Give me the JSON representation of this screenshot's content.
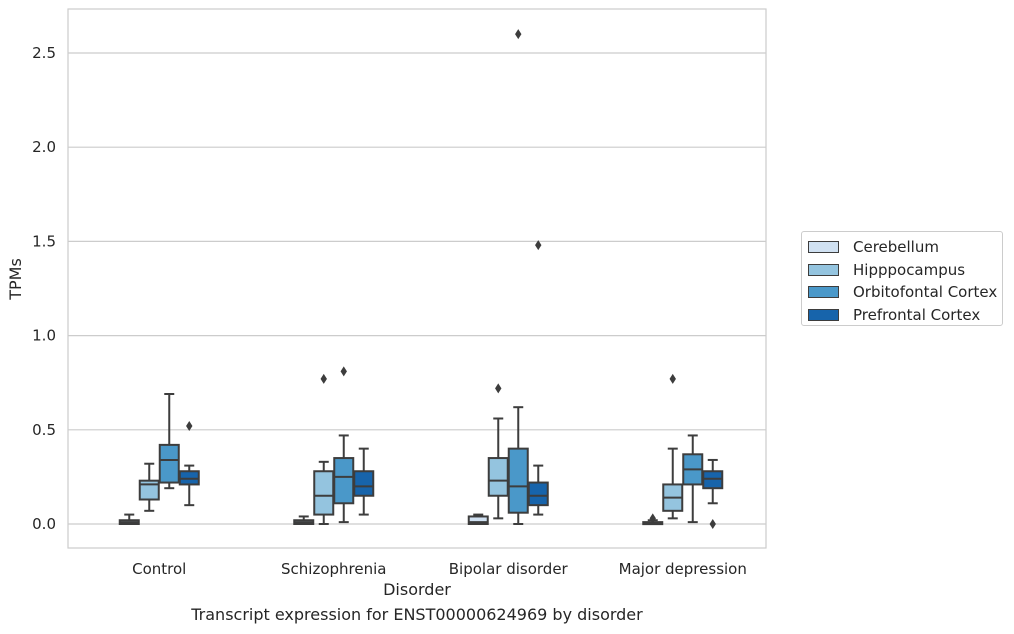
{
  "chart_data": {
    "type": "box",
    "title": "",
    "caption": "Transcript expression for ENST00000624969 by disorder",
    "xlabel": "Disorder",
    "ylabel": "TPMs",
    "ylim": [
      -0.12,
      2.75
    ],
    "yticks": [
      "0.0",
      "0.5",
      "1.0",
      "1.5",
      "2.0",
      "2.5"
    ],
    "ytick_values": [
      0.0,
      0.5,
      1.0,
      1.5,
      2.0,
      2.5
    ],
    "grid": "horizontal",
    "legend_position": "right",
    "categories": [
      "Control",
      "Schizophrenia",
      "Bipolar disorder",
      "Major depression"
    ],
    "series": [
      {
        "name": "Cerebellum",
        "color": "#d0e1f2",
        "boxes": [
          {
            "whisker_low": 0.0,
            "q1": 0.0,
            "median": 0.01,
            "q3": 0.02,
            "whisker_high": 0.05,
            "outliers": []
          },
          {
            "whisker_low": 0.0,
            "q1": 0.0,
            "median": 0.01,
            "q3": 0.02,
            "whisker_high": 0.04,
            "outliers": []
          },
          {
            "whisker_low": 0.0,
            "q1": 0.0,
            "median": 0.01,
            "q3": 0.04,
            "whisker_high": 0.05,
            "outliers": []
          },
          {
            "whisker_low": 0.0,
            "q1": 0.0,
            "median": 0.005,
            "q3": 0.01,
            "whisker_high": 0.02,
            "outliers": [
              0.03
            ]
          }
        ]
      },
      {
        "name": "Hipppocampus",
        "color": "#94c4df",
        "boxes": [
          {
            "whisker_low": 0.07,
            "q1": 0.13,
            "median": 0.21,
            "q3": 0.23,
            "whisker_high": 0.32,
            "outliers": []
          },
          {
            "whisker_low": 0.0,
            "q1": 0.05,
            "median": 0.15,
            "q3": 0.28,
            "whisker_high": 0.33,
            "outliers": [
              0.77
            ]
          },
          {
            "whisker_low": 0.03,
            "q1": 0.15,
            "median": 0.23,
            "q3": 0.35,
            "whisker_high": 0.56,
            "outliers": [
              0.72
            ]
          },
          {
            "whisker_low": 0.03,
            "q1": 0.07,
            "median": 0.14,
            "q3": 0.21,
            "whisker_high": 0.4,
            "outliers": [
              0.77
            ]
          }
        ]
      },
      {
        "name": "Orbitofontal Cortex",
        "color": "#4a98c9",
        "boxes": [
          {
            "whisker_low": 0.19,
            "q1": 0.22,
            "median": 0.34,
            "q3": 0.42,
            "whisker_high": 0.69,
            "outliers": []
          },
          {
            "whisker_low": 0.01,
            "q1": 0.11,
            "median": 0.25,
            "q3": 0.35,
            "whisker_high": 0.47,
            "outliers": [
              0.81
            ]
          },
          {
            "whisker_low": 0.0,
            "q1": 0.06,
            "median": 0.2,
            "q3": 0.4,
            "whisker_high": 0.62,
            "outliers": [
              2.6
            ]
          },
          {
            "whisker_low": 0.01,
            "q1": 0.21,
            "median": 0.29,
            "q3": 0.37,
            "whisker_high": 0.47,
            "outliers": []
          }
        ]
      },
      {
        "name": "Prefrontal Cortex",
        "color": "#1764ab",
        "boxes": [
          {
            "whisker_low": 0.1,
            "q1": 0.21,
            "median": 0.24,
            "q3": 0.28,
            "whisker_high": 0.31,
            "outliers": [
              0.52
            ]
          },
          {
            "whisker_low": 0.05,
            "q1": 0.15,
            "median": 0.2,
            "q3": 0.28,
            "whisker_high": 0.4,
            "outliers": []
          },
          {
            "whisker_low": 0.05,
            "q1": 0.1,
            "median": 0.15,
            "q3": 0.22,
            "whisker_high": 0.31,
            "outliers": [
              1.48
            ]
          },
          {
            "whisker_low": 0.11,
            "q1": 0.19,
            "median": 0.24,
            "q3": 0.28,
            "whisker_high": 0.34,
            "outliers": [
              0.0
            ]
          }
        ]
      }
    ]
  }
}
